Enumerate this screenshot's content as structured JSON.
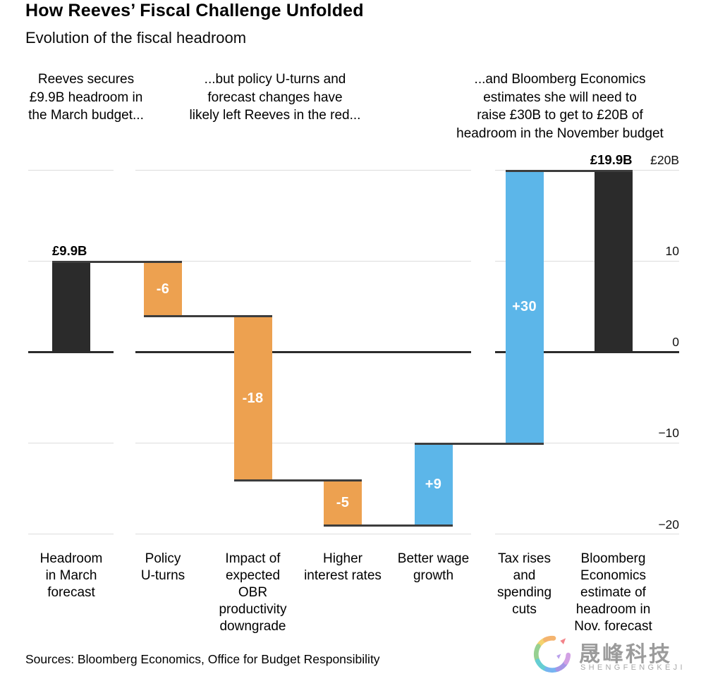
{
  "header": {
    "title": "How Reeves’ Fiscal Challenge Unfolded",
    "subtitle": "Evolution of the fiscal headroom"
  },
  "annotations": [
    {
      "text": "Reeves secures\n£9.9B headroom in\nthe March budget..."
    },
    {
      "text": "...but policy U-turns and\nforecast changes have\nlikely left Reeves in the red..."
    },
    {
      "text": "...and Bloomberg Economics\nestimates she will need to\nraise £30B to get to £20B of\nheadroom in the November budget"
    }
  ],
  "chart_data": {
    "type": "bar",
    "subtype": "waterfall",
    "title": "How Reeves’ Fiscal Challenge Unfolded",
    "subtitle": "Evolution of the fiscal headroom",
    "unit": "£B",
    "ylim": [
      -20,
      20
    ],
    "grid": true,
    "legend": null,
    "yticks": [
      {
        "value": 20,
        "label": "£20B"
      },
      {
        "value": 10,
        "label": "10"
      },
      {
        "value": 0,
        "label": "0"
      },
      {
        "value": -10,
        "label": "−10"
      },
      {
        "value": -20,
        "label": "−20"
      }
    ],
    "bars": [
      {
        "category": "Headroom\nin March\nforecast",
        "start": 0,
        "end": 9.9,
        "change": 9.9,
        "color_key": "black",
        "value_label": "£9.9B",
        "label_position": "above-left"
      },
      {
        "category": "Policy\nU-turns",
        "start": 9.9,
        "end": 3.9,
        "change": -6,
        "color_key": "orange",
        "value_label": "-6",
        "label_position": "inside"
      },
      {
        "category": "Impact of\nexpected\nOBR\nproductivity\ndowngrade",
        "start": 3.9,
        "end": -14.1,
        "change": -18,
        "color_key": "orange",
        "value_label": "-18",
        "label_position": "inside"
      },
      {
        "category": "Higher\ninterest rates",
        "start": -14.1,
        "end": -19.1,
        "change": -5,
        "color_key": "orange",
        "value_label": "-5",
        "label_position": "inside"
      },
      {
        "category": "Better wage\ngrowth",
        "start": -19.1,
        "end": -10.1,
        "change": 9,
        "color_key": "blue",
        "value_label": "+9",
        "label_position": "inside"
      },
      {
        "category": "Tax rises\nand\nspending\ncuts",
        "start": -10.1,
        "end": 19.9,
        "change": 30,
        "color_key": "blue",
        "value_label": "+30",
        "label_position": "inside"
      },
      {
        "category": "Bloomberg\nEconomics\nestimate of\nheadroom in\nNov. forecast",
        "start": 0,
        "end": 19.9,
        "change": 19.9,
        "color_key": "black",
        "value_label": "£19.9B",
        "label_position": "above-right"
      }
    ],
    "axis_groups": [
      [
        0
      ],
      [
        1,
        2,
        3,
        4
      ],
      [
        5,
        6
      ]
    ],
    "colors": {
      "black": "#2b2b2b",
      "orange": "#eda150",
      "blue": "#5cb6e9",
      "gridline": "#dcdcdc",
      "zero_line": "#2b2b2b",
      "connector": "#3d3d3d",
      "value_label_inside": "#ffffff",
      "value_label_outside": "#000000"
    }
  },
  "footer": {
    "sources": "Sources: Bloomberg Economics, Office for Budget Responsibility"
  },
  "watermark": {
    "name_cn": "晟峰科技",
    "name_en": "SHENGFENGKEJI",
    "logo": "rainbow-swirl-icon",
    "text_color": "#9b9b9b"
  }
}
